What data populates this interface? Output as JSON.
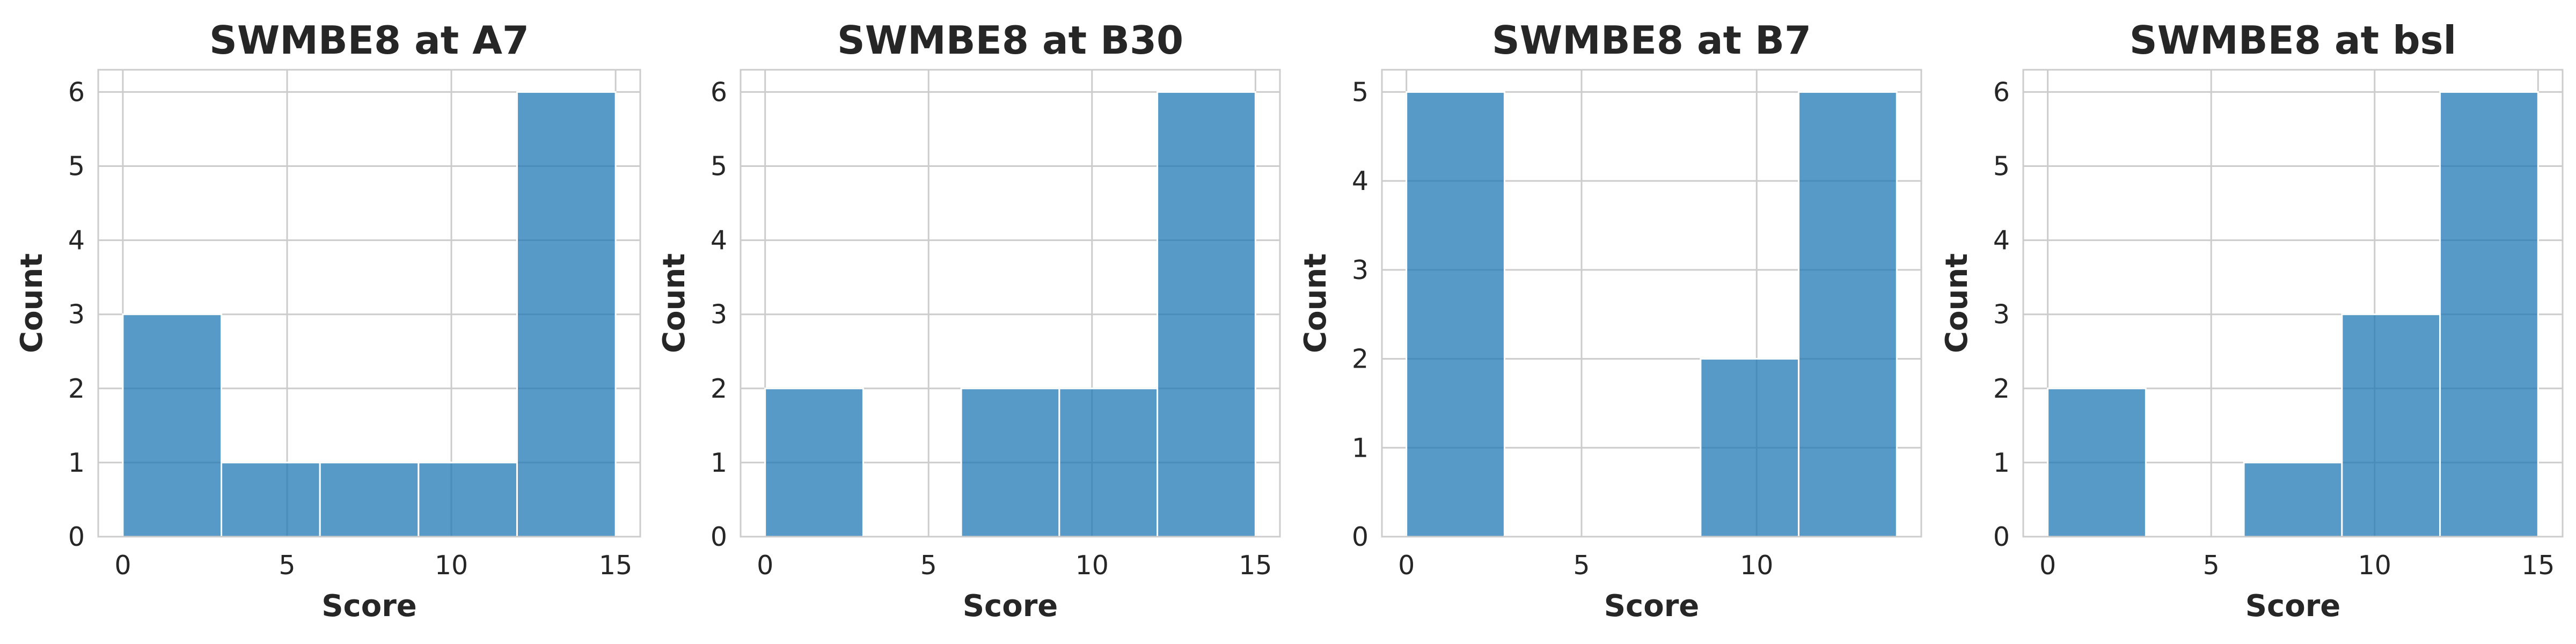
{
  "figure": {
    "bar_color": "#1f77b4",
    "grid_color": "#cccccc",
    "background": "#ffffff"
  },
  "chart_data": [
    {
      "type": "bar",
      "subtype": "histogram",
      "title": "SWMBE8 at A7",
      "xlabel": "Score",
      "ylabel": "Count",
      "bin_edges": [
        0,
        3,
        6,
        9,
        12,
        15
      ],
      "values": [
        3,
        1,
        1,
        1,
        6
      ],
      "xlim": [
        -0.75,
        15.75
      ],
      "ylim": [
        0,
        6.3
      ],
      "xticks": [
        0,
        5,
        10,
        15
      ],
      "yticks": [
        0,
        1,
        2,
        3,
        4,
        5,
        6
      ],
      "grid": true
    },
    {
      "type": "bar",
      "subtype": "histogram",
      "title": "SWMBE8 at B30",
      "xlabel": "Score",
      "ylabel": "Count",
      "bin_edges": [
        0,
        3,
        6,
        9,
        12,
        15
      ],
      "values": [
        2,
        0,
        2,
        2,
        6
      ],
      "xlim": [
        -0.75,
        15.75
      ],
      "ylim": [
        0,
        6.3
      ],
      "xticks": [
        0,
        5,
        10,
        15
      ],
      "yticks": [
        0,
        1,
        2,
        3,
        4,
        5,
        6
      ],
      "grid": true
    },
    {
      "type": "bar",
      "subtype": "histogram",
      "title": "SWMBE8 at B7",
      "xlabel": "Score",
      "ylabel": "Count",
      "bin_edges": [
        0,
        2.8,
        5.6,
        8.4,
        11.2,
        14
      ],
      "values": [
        5,
        0,
        0,
        2,
        5
      ],
      "xlim": [
        -0.7,
        14.7
      ],
      "ylim": [
        0,
        5.25
      ],
      "xticks": [
        0,
        5,
        10
      ],
      "yticks": [
        0,
        1,
        2,
        3,
        4,
        5
      ],
      "grid": true
    },
    {
      "type": "bar",
      "subtype": "histogram",
      "title": "SWMBE8 at bsl",
      "xlabel": "Score",
      "ylabel": "Count",
      "bin_edges": [
        0,
        3,
        6,
        9,
        12,
        15
      ],
      "values": [
        2,
        0,
        1,
        3,
        6
      ],
      "xlim": [
        -0.75,
        15.75
      ],
      "ylim": [
        0,
        6.3
      ],
      "xticks": [
        0,
        5,
        10,
        15
      ],
      "yticks": [
        0,
        1,
        2,
        3,
        4,
        5,
        6
      ],
      "grid": true
    }
  ]
}
